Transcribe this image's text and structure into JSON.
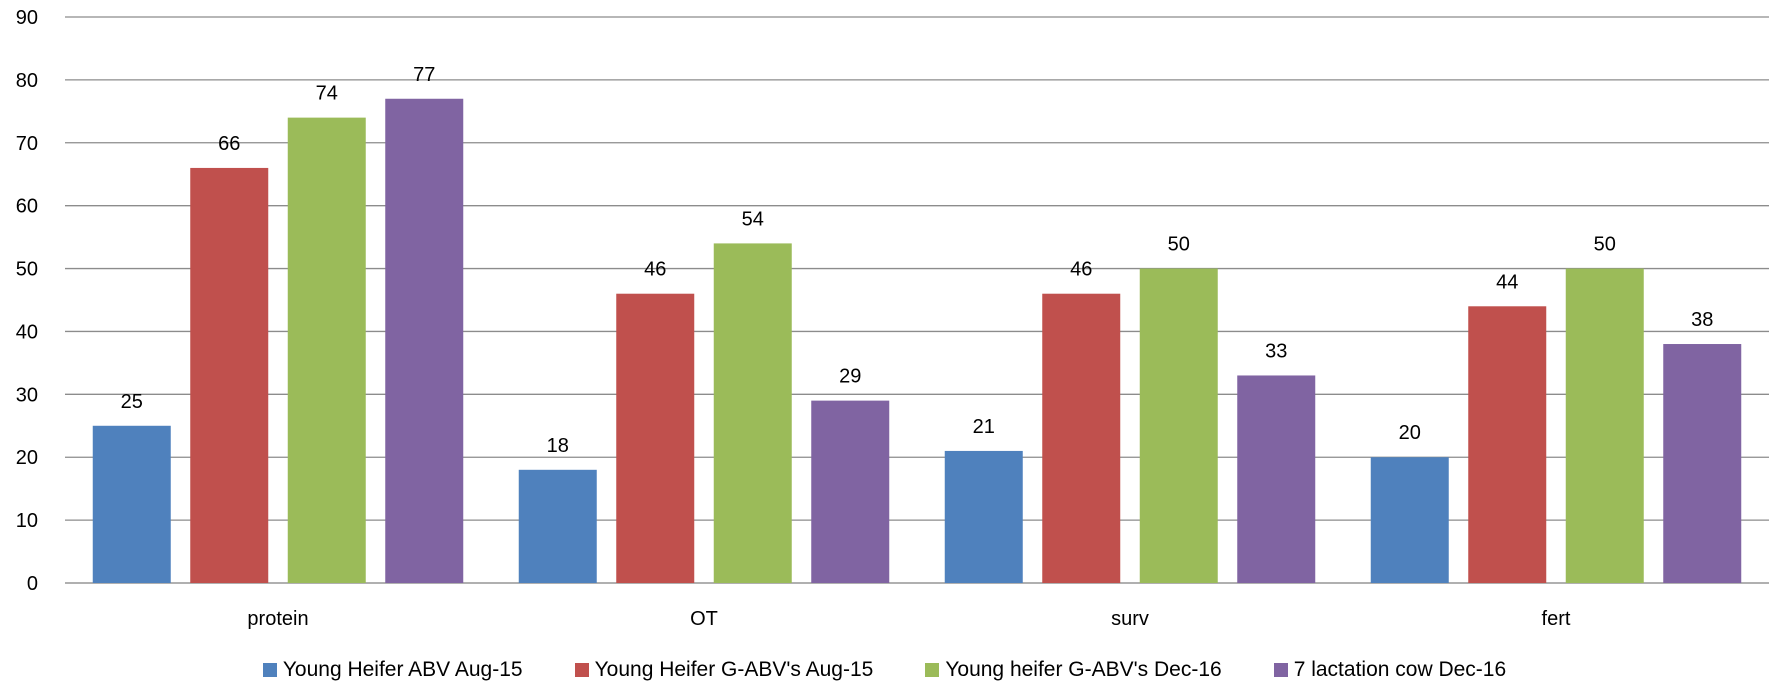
{
  "chart_data": {
    "type": "bar",
    "categories": [
      "protein",
      "OT",
      "surv",
      "fert"
    ],
    "series": [
      {
        "name": "Young Heifer ABV Aug-15",
        "values": [
          25,
          18,
          21,
          20
        ],
        "color": "#4f81bd"
      },
      {
        "name": "Young Heifer G-ABV's Aug-15",
        "values": [
          66,
          46,
          46,
          44
        ],
        "color": "#c0504d"
      },
      {
        "name": "Young heifer G-ABV's Dec-16",
        "values": [
          74,
          54,
          50,
          50
        ],
        "color": "#9bbb59"
      },
      {
        "name": "7 lactation cow Dec-16",
        "values": [
          77,
          29,
          33,
          38
        ],
        "color": "#8064a2"
      }
    ],
    "ylim": [
      0,
      90
    ],
    "yticks": [
      0,
      10,
      20,
      30,
      40,
      50,
      60,
      70,
      80,
      90
    ],
    "grid": true,
    "data_labels": true,
    "legend_position": "bottom"
  }
}
